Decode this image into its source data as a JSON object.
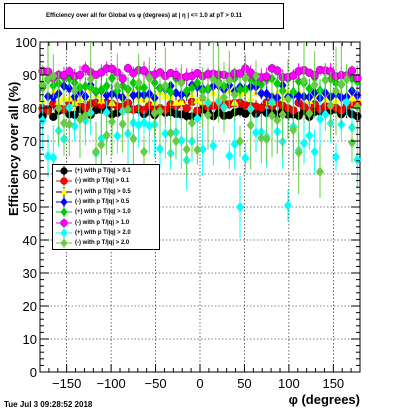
{
  "page": {
    "title": "Efficiency over all for Global vs φ (degrees) at | η | <= 1.0 at pT > 0.11",
    "timestamp": "Tue Jul  3 09:28:52 2018"
  },
  "chart_data": {
    "type": "scatter",
    "title": "Efficiency over all for Global vs φ (degrees) at | η | <= 1.0 at pT > 0.11",
    "xlabel": "φ (degrees)",
    "ylabel": "Efficiency over all (%)",
    "xlim": [
      -180,
      180
    ],
    "ylim": [
      0,
      100
    ],
    "x_ticks": [
      -150,
      -100,
      -50,
      0,
      50,
      100,
      150
    ],
    "y_ticks": [
      0,
      10,
      20,
      30,
      40,
      50,
      60,
      70,
      80,
      90,
      100
    ],
    "grid": true,
    "legend_position": "middle-left",
    "series": [
      {
        "name": "(+) with p T/|q| > 0.1",
        "color": "#000000",
        "marker": "circle",
        "base": 78.5,
        "spread": 1.2,
        "err": 1.5
      },
      {
        "name": "(-) with p T/|q| > 0.1",
        "color": "#ff0000",
        "marker": "circle",
        "base": 80.5,
        "spread": 1.4,
        "err": 1.6
      },
      {
        "name": "(+) with p T/|q| > 0.5",
        "color": "#ffff00",
        "marker": "triangle",
        "base": 83.5,
        "spread": 2.0,
        "err": 2.5
      },
      {
        "name": "(-) with p T/|q| > 0.5",
        "color": "#0000ff",
        "marker": "diamond",
        "base": 85.0,
        "spread": 2.0,
        "err": 2.5
      },
      {
        "name": "(+) with p T/|q| > 1.0",
        "color": "#00cc00",
        "marker": "diamond",
        "base": 87.0,
        "spread": 2.2,
        "err": 2.8
      },
      {
        "name": "(-) with p T/|q| > 1.0",
        "color": "#ff00ff",
        "marker": "circle",
        "base": 90.5,
        "spread": 1.6,
        "err": 2.0
      },
      {
        "name": "(+) with p T/|q| > 2.0",
        "color": "#00ffff",
        "marker": "diamond",
        "base": 73.0,
        "spread": 9.0,
        "err": 7.0
      },
      {
        "name": "(-) with p T/|q| > 2.0",
        "color": "#66cc44",
        "marker": "diamond",
        "base": 78.0,
        "spread": 12.0,
        "err": 9.0
      }
    ]
  }
}
